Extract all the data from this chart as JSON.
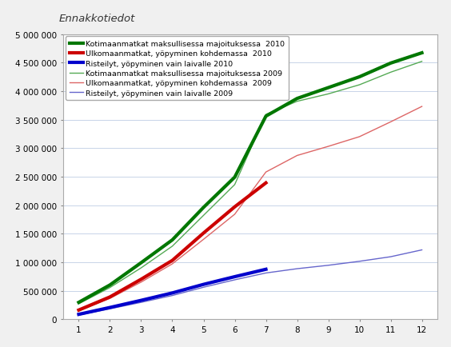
{
  "title": "Ennakkotiedot",
  "series": [
    {
      "label": "Kotimaanmatkat maksullisessa majoituksessa  2010",
      "color": "#007700",
      "linewidth": 3.0,
      "months": [
        1,
        2,
        3,
        4,
        5,
        6,
        7,
        8,
        9,
        10,
        11,
        12
      ],
      "values": [
        295000,
        600000,
        990000,
        1390000,
        1960000,
        2490000,
        3560000,
        3870000,
        4060000,
        4250000,
        4490000,
        4670000
      ]
    },
    {
      "label": "Ulkomaanmatkat, yöpyminen kohdemassa  2010",
      "color": "#cc0000",
      "linewidth": 3.0,
      "months": [
        1,
        2,
        3,
        4,
        5,
        6,
        7
      ],
      "values": [
        160000,
        390000,
        700000,
        1030000,
        1510000,
        1970000,
        2390000
      ]
    },
    {
      "label": "Risteilyt, yöpyminen vain laivalle 2010",
      "color": "#0000cc",
      "linewidth": 3.0,
      "months": [
        1,
        2,
        3,
        4,
        5,
        6,
        7
      ],
      "values": [
        85000,
        205000,
        330000,
        460000,
        610000,
        745000,
        875000
      ]
    },
    {
      "label": "Kotimaanmatkat maksullisessa majoituksessa 2009",
      "color": "#55aa55",
      "linewidth": 1.0,
      "months": [
        1,
        2,
        3,
        4,
        5,
        6,
        7,
        8,
        9,
        10,
        11,
        12
      ],
      "values": [
        270000,
        555000,
        900000,
        1280000,
        1820000,
        2360000,
        3590000,
        3820000,
        3950000,
        4110000,
        4330000,
        4520000
      ]
    },
    {
      "label": "Ulkomaanmatkat, yöpyminen kohdemassa  2009",
      "color": "#dd6666",
      "linewidth": 1.0,
      "months": [
        1,
        2,
        3,
        4,
        5,
        6,
        7,
        8,
        9,
        10,
        11,
        12
      ],
      "values": [
        145000,
        365000,
        650000,
        970000,
        1400000,
        1840000,
        2580000,
        2870000,
        3030000,
        3200000,
        3460000,
        3730000
      ]
    },
    {
      "label": "Risteilyt, yöpyminen vain laivalle 2009",
      "color": "#6666cc",
      "linewidth": 1.0,
      "months": [
        1,
        2,
        3,
        4,
        5,
        6,
        7,
        8,
        9,
        10,
        11,
        12
      ],
      "values": [
        72000,
        182000,
        295000,
        415000,
        560000,
        690000,
        810000,
        885000,
        945000,
        1015000,
        1095000,
        1215000
      ]
    }
  ],
  "xlim": [
    0.5,
    12.5
  ],
  "ylim": [
    0,
    5000000
  ],
  "yticks": [
    0,
    500000,
    1000000,
    1500000,
    2000000,
    2500000,
    3000000,
    3500000,
    4000000,
    4500000,
    5000000
  ],
  "xticks": [
    1,
    2,
    3,
    4,
    5,
    6,
    7,
    8,
    9,
    10,
    11,
    12
  ],
  "background_color": "#f0f0f0",
  "plot_bg_color": "#ffffff",
  "grid_color": "#c8d4e8",
  "legend_fontsize": 6.8,
  "title_fontsize": 9.5
}
